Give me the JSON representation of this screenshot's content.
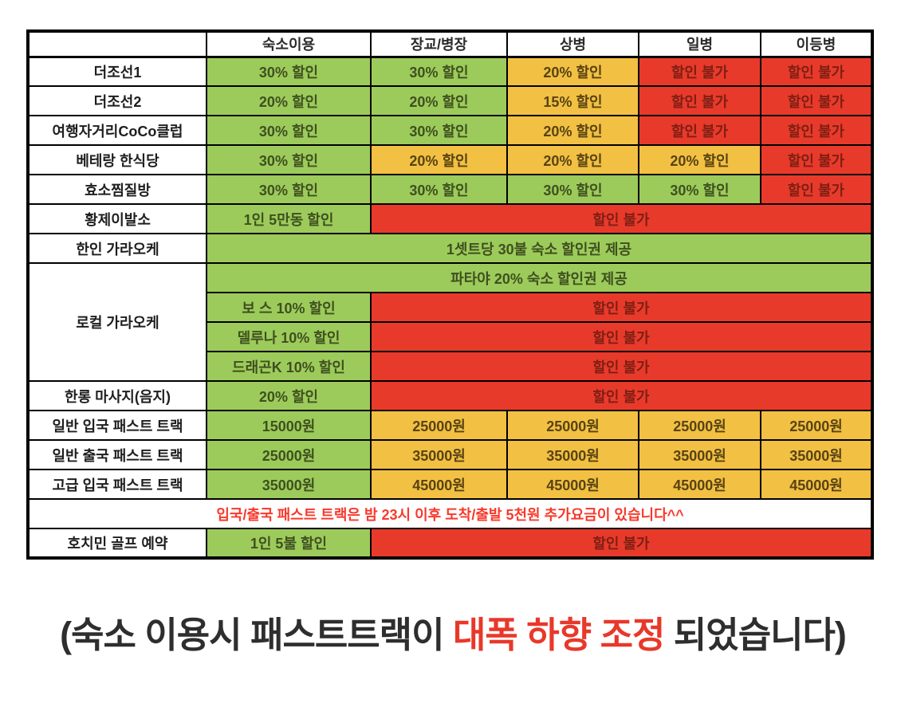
{
  "colors": {
    "green": {
      "bg": "#9DCB5B",
      "text": "#3E501F"
    },
    "yellow": {
      "bg": "#F2C043",
      "text": "#584312"
    },
    "red": {
      "bg": "#E83A2B",
      "text": "#7E1F13"
    },
    "notice": {
      "bg": "#FFFFFF",
      "text": "#F8392B"
    },
    "caption_text": "#2E2E2E",
    "caption_highlight": "#E8382A",
    "border": "#000000"
  },
  "table": {
    "headers": [
      "",
      "숙소이용",
      "장교/병장",
      "상병",
      "일병",
      "이등병"
    ],
    "rows": [
      {
        "label": "더조선1",
        "cells": [
          {
            "text": "30% 할인",
            "color": "green"
          },
          {
            "text": "30% 할인",
            "color": "green"
          },
          {
            "text": "20% 할인",
            "color": "yellow"
          },
          {
            "text": "할인 불가",
            "color": "red"
          },
          {
            "text": "할인 불가",
            "color": "red"
          }
        ]
      },
      {
        "label": "더조선2",
        "cells": [
          {
            "text": "20% 할인",
            "color": "green"
          },
          {
            "text": "20% 할인",
            "color": "green"
          },
          {
            "text": "15% 할인",
            "color": "yellow"
          },
          {
            "text": "할인 불가",
            "color": "red"
          },
          {
            "text": "할인 불가",
            "color": "red"
          }
        ]
      },
      {
        "label": "여행자거리CoCo클럽",
        "cells": [
          {
            "text": "30% 할인",
            "color": "green"
          },
          {
            "text": "30% 할인",
            "color": "green"
          },
          {
            "text": "20% 할인",
            "color": "yellow"
          },
          {
            "text": "할인 불가",
            "color": "red"
          },
          {
            "text": "할인 불가",
            "color": "red"
          }
        ]
      },
      {
        "label": "베테랑 한식당",
        "cells": [
          {
            "text": "30% 할인",
            "color": "green"
          },
          {
            "text": "20% 할인",
            "color": "yellow"
          },
          {
            "text": "20% 할인",
            "color": "yellow"
          },
          {
            "text": "20% 할인",
            "color": "yellow"
          },
          {
            "text": "할인 불가",
            "color": "red"
          }
        ]
      },
      {
        "label": "효소찜질방",
        "cells": [
          {
            "text": "30% 할인",
            "color": "green"
          },
          {
            "text": "30% 할인",
            "color": "green"
          },
          {
            "text": "30% 할인",
            "color": "green"
          },
          {
            "text": "30% 할인",
            "color": "green"
          },
          {
            "text": "할인 불가",
            "color": "red"
          }
        ]
      },
      {
        "label": "황제이발소",
        "cells": [
          {
            "text": "1인 5만동 할인",
            "color": "green"
          },
          {
            "text": "할인 불가",
            "color": "red",
            "span": 4
          }
        ]
      },
      {
        "label": "한인 가라오케",
        "cells": [
          {
            "text": "1셋트당 30불 숙소 할인권 제공",
            "color": "green",
            "span": 5
          }
        ]
      },
      {
        "label": "로컬 가라오케",
        "labelRowspan": 4,
        "cells": [
          {
            "text": "파타야 20% 숙소 할인권 제공",
            "color": "green",
            "span": 5
          }
        ]
      },
      {
        "cells": [
          {
            "text": "보 스 10% 할인",
            "color": "green"
          },
          {
            "text": "할인 불가",
            "color": "red",
            "span": 4
          }
        ]
      },
      {
        "cells": [
          {
            "text": "델루나 10% 할인",
            "color": "green"
          },
          {
            "text": "할인 불가",
            "color": "red",
            "span": 4
          }
        ]
      },
      {
        "cells": [
          {
            "text": "드래곤K 10% 할인",
            "color": "green"
          },
          {
            "text": "할인 불가",
            "color": "red",
            "span": 4
          }
        ]
      },
      {
        "label": "한롱 마사지(음지)",
        "cells": [
          {
            "text": "20% 할인",
            "color": "green"
          },
          {
            "text": "할인 불가",
            "color": "red",
            "span": 4
          }
        ]
      },
      {
        "label": "일반 입국 패스트 트랙",
        "cells": [
          {
            "text": "15000원",
            "color": "green"
          },
          {
            "text": "25000원",
            "color": "yellow"
          },
          {
            "text": "25000원",
            "color": "yellow"
          },
          {
            "text": "25000원",
            "color": "yellow"
          },
          {
            "text": "25000원",
            "color": "yellow"
          }
        ]
      },
      {
        "label": "일반 출국 패스트 트랙",
        "cells": [
          {
            "text": "25000원",
            "color": "green"
          },
          {
            "text": "35000원",
            "color": "yellow"
          },
          {
            "text": "35000원",
            "color": "yellow"
          },
          {
            "text": "35000원",
            "color": "yellow"
          },
          {
            "text": "35000원",
            "color": "yellow"
          }
        ]
      },
      {
        "label": "고급 입국 패스트 트랙",
        "cells": [
          {
            "text": "35000원",
            "color": "green"
          },
          {
            "text": "45000원",
            "color": "yellow"
          },
          {
            "text": "45000원",
            "color": "yellow"
          },
          {
            "text": "45000원",
            "color": "yellow"
          },
          {
            "text": "45000원",
            "color": "yellow"
          }
        ]
      },
      {
        "cells": [
          {
            "text": "입국/출국 패스트 트랙은 밤 23시 이후 도착/출발 5천원 추가요금이 있습니다^^",
            "color": "notice",
            "span": 6
          }
        ]
      },
      {
        "label": "호치민 골프 예약",
        "cells": [
          {
            "text": "1인 5불 할인",
            "color": "green"
          },
          {
            "text": "할인 불가",
            "color": "red",
            "span": 4
          }
        ]
      }
    ]
  },
  "caption": {
    "prefix": "(숙소 이용시 패스트트랙이 ",
    "highlight": "대폭 하향 조정",
    "suffix": " 되었습니다)"
  }
}
